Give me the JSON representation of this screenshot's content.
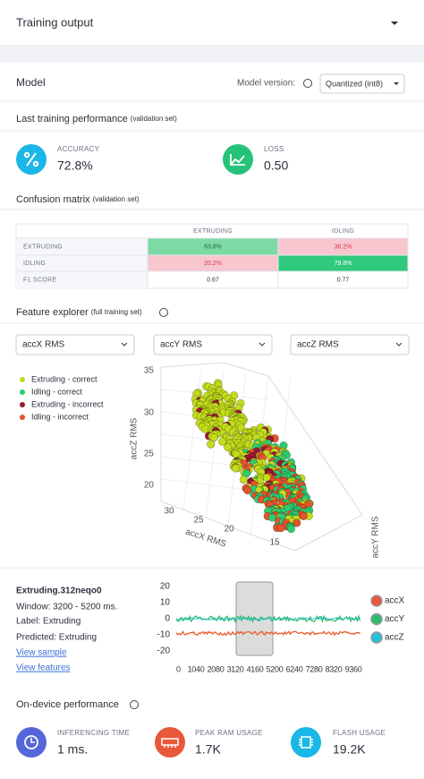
{
  "header": {
    "title": "Training output"
  },
  "model": {
    "title": "Model",
    "version_label": "Model version:",
    "version": "Quantized (int8)"
  },
  "performance": {
    "title": "Last training performance",
    "note": "(validation set)",
    "metrics": [
      {
        "label": "ACCURACY",
        "value": "72.8%"
      },
      {
        "label": "LOSS",
        "value": "0.50"
      }
    ]
  },
  "confusion": {
    "title": "Confusion matrix",
    "note": "(validation set)",
    "columns": [
      "EXTRUDING",
      "IDLING"
    ],
    "rows": [
      {
        "label": "EXTRUDING",
        "cells": [
          "63.8%",
          "36.2%"
        ]
      },
      {
        "label": "IDLING",
        "cells": [
          "20.2%",
          "79.8%"
        ]
      },
      {
        "label": "F1 SCORE",
        "cells": [
          "0.67",
          "0.77"
        ]
      }
    ]
  },
  "features": {
    "title": "Feature explorer",
    "note": "(full training set)",
    "selects": [
      "accX RMS",
      "accY RMS",
      "accZ RMS"
    ],
    "legend": [
      {
        "name": "Extruding - correct",
        "color": "#c3dd1c"
      },
      {
        "name": "Idling - correct",
        "color": "#2ecc71"
      },
      {
        "name": "Extruding - incorrect",
        "color": "#9b1830"
      },
      {
        "name": "Idling - incorrect",
        "color": "#e5532b"
      }
    ],
    "plot": {
      "z_label": "accZ RMS",
      "z_ticks": [
        "35",
        "30",
        "25",
        "20"
      ],
      "x_label": "accX RMS",
      "x_ticks": [
        "30",
        "25",
        "20",
        "15"
      ],
      "y_label": "accY RMS"
    }
  },
  "sample": {
    "name": "Extruding.312neqo0",
    "window": "Window: 3200 - 5200 ms.",
    "label": "Label: Extruding",
    "predicted": "Predicted: Extruding",
    "links": [
      "View sample",
      "View features"
    ],
    "chart": {
      "yticks": [
        20,
        10,
        0,
        -10,
        -20
      ],
      "xticks": [
        0,
        1040,
        2080,
        3120,
        4160,
        5200,
        6240,
        7280,
        8320,
        9360
      ],
      "legend": [
        "accX",
        "accY",
        "accZ"
      ]
    }
  },
  "device": {
    "title": "On-device performance",
    "metrics": [
      {
        "label": "INFERENCING TIME",
        "value": "1 ms."
      },
      {
        "label": "PEAK RAM USAGE",
        "value": "1.7K"
      },
      {
        "label": "FLASH USAGE",
        "value": "19.2K"
      }
    ]
  }
}
